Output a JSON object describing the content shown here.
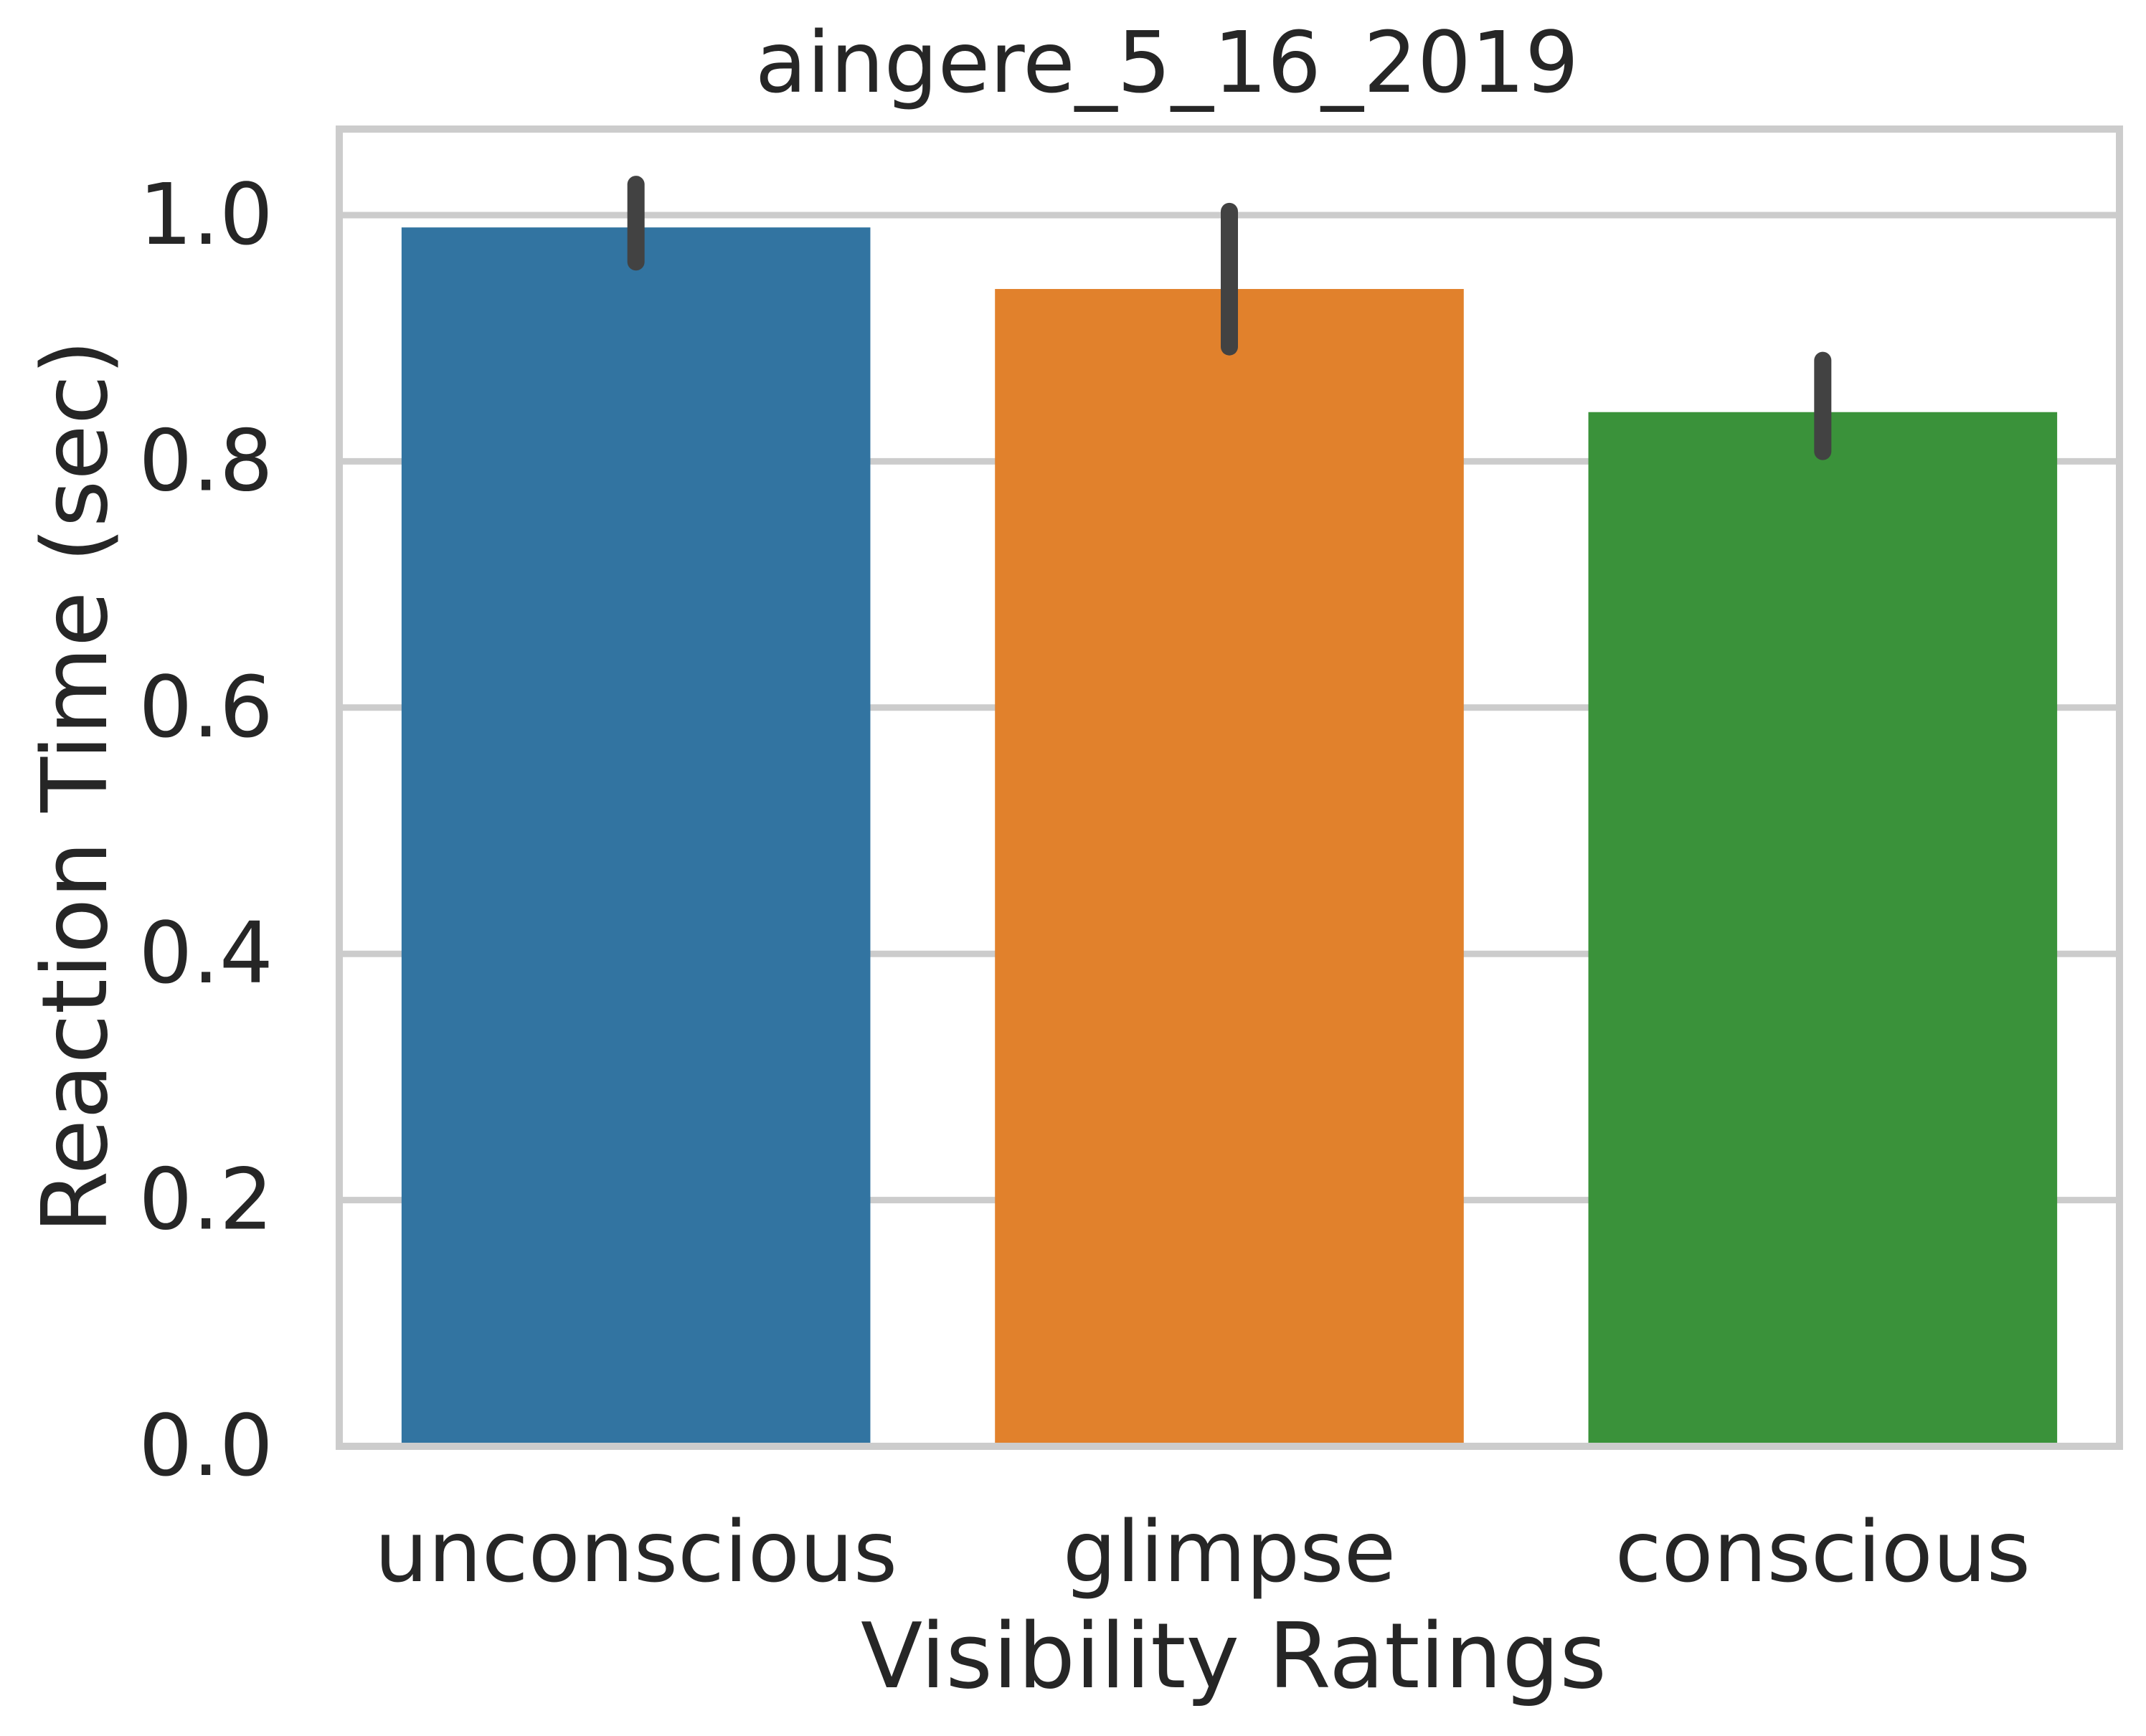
{
  "chart_data": {
    "type": "bar",
    "title": "aingere_5_16_2019",
    "xlabel": "Visibility Ratings",
    "ylabel": "Reaction Time (sec)",
    "categories": [
      "unconscious",
      "glimpse",
      "conscious"
    ],
    "values": [
      0.99,
      0.94,
      0.84
    ],
    "error_low": [
      0.962,
      0.893,
      0.808
    ],
    "error_high": [
      1.025,
      1.003,
      0.882
    ],
    "colors": [
      "#3274a1",
      "#e1812c",
      "#3a923a"
    ],
    "error_bar_color": "#424242",
    "ylim": [
      0,
      1.07
    ],
    "yticks": [
      0.0,
      0.2,
      0.4,
      0.6,
      0.8,
      1.0
    ],
    "ytick_labels": [
      "0.0",
      "0.2",
      "0.4",
      "0.6",
      "0.8",
      "1.0"
    ],
    "grid": true,
    "grid_color": "#cccccc",
    "frame_color": "#cccccc"
  }
}
